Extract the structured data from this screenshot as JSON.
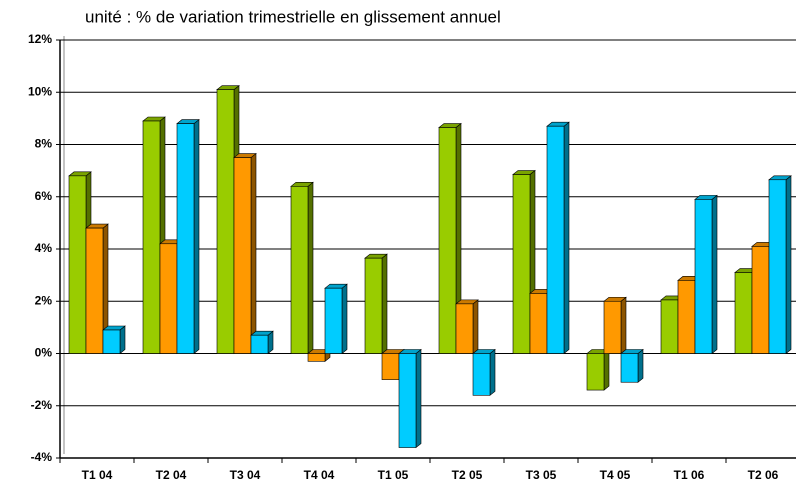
{
  "chart_data": {
    "type": "bar",
    "title": "unité : % de variation trimestrielle en glissement annuel",
    "categories": [
      "T1 04",
      "T2 04",
      "T3 04",
      "T4 04",
      "T1 05",
      "T2 05",
      "T3 05",
      "T4 05",
      "T1 06",
      "T2 06"
    ],
    "series": [
      {
        "color": "#99cc00",
        "values": [
          6.8,
          8.9,
          10.1,
          6.4,
          3.65,
          8.65,
          6.85,
          -1.4,
          2.05,
          3.1
        ]
      },
      {
        "color": "#ff9900",
        "values": [
          4.8,
          4.2,
          7.5,
          -0.3,
          -1.0,
          1.9,
          2.3,
          2.0,
          2.8,
          4.1
        ]
      },
      {
        "color": "#00ccff",
        "values": [
          0.9,
          8.8,
          0.7,
          2.5,
          -3.6,
          -1.6,
          8.7,
          -1.1,
          5.9,
          6.65
        ]
      }
    ],
    "ylim": [
      -4,
      12
    ],
    "yticks": [
      {
        "value": -4,
        "label": "-4%"
      },
      {
        "value": -2,
        "label": "-2%"
      },
      {
        "value": 0,
        "label": "0%"
      },
      {
        "value": 2,
        "label": "2%"
      },
      {
        "value": 4,
        "label": "4%"
      },
      {
        "value": 6,
        "label": "6%"
      },
      {
        "value": 8,
        "label": "8%"
      },
      {
        "value": 10,
        "label": "10%"
      },
      {
        "value": 12,
        "label": "12%"
      }
    ],
    "grid": true
  }
}
